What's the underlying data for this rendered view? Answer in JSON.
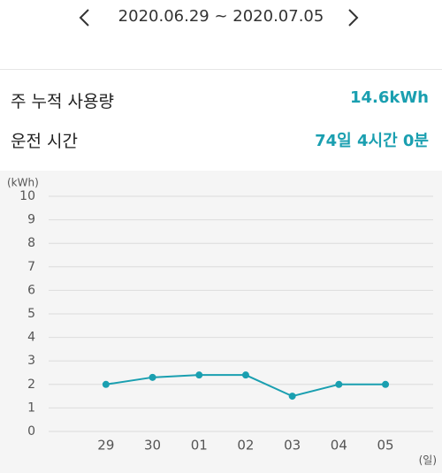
{
  "header": {
    "date_range": "2020.06.29 ~ 2020.07.05"
  },
  "summary": [
    {
      "label": "주 누적 사용량",
      "value": "14.6kWh"
    },
    {
      "label": "운전 시간",
      "value": "74일 4시간 0분"
    }
  ],
  "chart_data": {
    "type": "line",
    "y_label": "(kWh)",
    "x_label": "(일)",
    "categories": [
      "29",
      "30",
      "01",
      "02",
      "03",
      "04",
      "05"
    ],
    "values": [
      2,
      2.3,
      2.4,
      2.4,
      1.5,
      2,
      2
    ],
    "color": "#1a9fb0",
    "ylim": [
      0,
      10
    ],
    "yticks": [
      0,
      1,
      2,
      3,
      4,
      5,
      6,
      7,
      8,
      9,
      10
    ],
    "grid": true
  }
}
